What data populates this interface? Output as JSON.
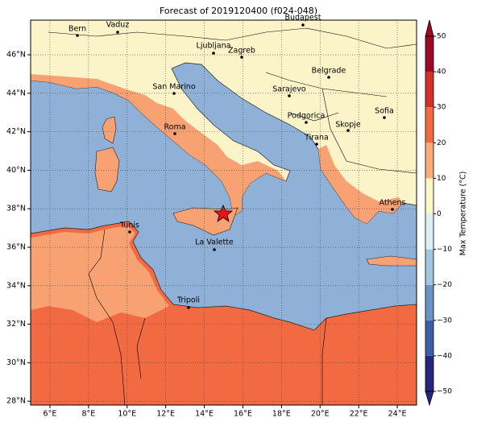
{
  "map": {
    "title": "Forecast of 2019120400 (f024-048)",
    "xlim": [
      5,
      25
    ],
    "ylim": [
      27.8,
      47.8
    ],
    "lon_ticks": [
      {
        "value": 6,
        "label": "6°E"
      },
      {
        "value": 8,
        "label": "8°E"
      },
      {
        "value": 10,
        "label": "10°E"
      },
      {
        "value": 12,
        "label": "12°E"
      },
      {
        "value": 14,
        "label": "14°E"
      },
      {
        "value": 16,
        "label": "16°E"
      },
      {
        "value": 18,
        "label": "18°E"
      },
      {
        "value": 20,
        "label": "20°E"
      },
      {
        "value": 22,
        "label": "22°E"
      },
      {
        "value": 24,
        "label": "24°E"
      }
    ],
    "lat_ticks": [
      {
        "value": 28,
        "label": "28°N"
      },
      {
        "value": 30,
        "label": "30°N"
      },
      {
        "value": 32,
        "label": "32°N"
      },
      {
        "value": 34,
        "label": "34°N"
      },
      {
        "value": 36,
        "label": "36°N"
      },
      {
        "value": 38,
        "label": "38°N"
      },
      {
        "value": 40,
        "label": "40°N"
      },
      {
        "value": 42,
        "label": "42°N"
      },
      {
        "value": 44,
        "label": "44°N"
      },
      {
        "value": 46,
        "label": "46°N"
      }
    ],
    "grid": true,
    "cities": [
      "Bern",
      "Vaduz",
      "Budapest",
      "Ljubljana",
      "Zagreb",
      "Belgrade",
      "San Marino",
      "Sarajevo",
      "Sofia",
      "Podgorica",
      "Skopje",
      "Roma",
      "Tirana",
      "Athens",
      "Tunis",
      "La Valette",
      "Tripoli"
    ],
    "colorbar": {
      "label": "Max Temperature (°C)",
      "lim": [
        -50,
        50
      ],
      "ticks": [
        {
          "value": -50,
          "label": "−50"
        },
        {
          "value": -40,
          "label": "−40"
        },
        {
          "value": -30,
          "label": "−30"
        },
        {
          "value": -20,
          "label": "−20"
        },
        {
          "value": -10,
          "label": "−10"
        },
        0,
        10,
        20,
        30,
        40,
        50
      ],
      "colors": [
        "#24267f",
        "#3a5ea8",
        "#6a93c6",
        "#a2c7df",
        "#dcf0f4",
        "#fcf6c8",
        "#fbac7a",
        "#f26a42",
        "#d32f2c",
        "#9c0a26"
      ]
    }
  }
}
